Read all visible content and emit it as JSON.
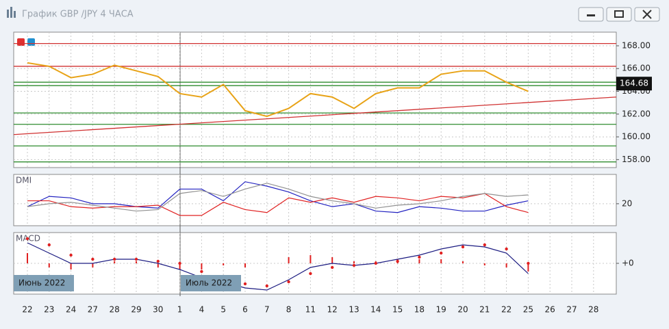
{
  "window": {
    "title": "График GBP /JPY  4 ЧАСА"
  },
  "chart_data": [
    {
      "type": "line",
      "style": "line",
      "categories": [
        "22",
        "23",
        "24",
        "27",
        "28",
        "29",
        "30",
        "1",
        "4",
        "5",
        "6",
        "7",
        "8",
        "11",
        "12",
        "13",
        "14",
        "15",
        "18",
        "19",
        "20",
        "21",
        "22",
        "25",
        "26",
        "27",
        "28"
      ],
      "color": "#e8a317",
      "values": [
        166.5,
        166.2,
        165.2,
        165.5,
        166.3,
        165.8,
        165.3,
        163.8,
        163.5,
        164.6,
        162.3,
        161.8,
        162.5,
        163.8,
        163.5,
        162.5,
        163.8,
        164.3,
        164.3,
        165.5,
        165.8,
        165.8,
        164.8,
        164.0,
        null,
        null,
        null
      ],
      "ylim": [
        157.3,
        169.2
      ],
      "yticks": [
        {
          "value": 158,
          "label": "158.00"
        },
        {
          "value": 160,
          "label": "160.00"
        },
        {
          "value": 162,
          "label": "162.00"
        },
        {
          "value": 164,
          "label": "164.00"
        },
        {
          "value": 166,
          "label": "166.00"
        },
        {
          "value": 168,
          "label": "168.00"
        }
      ],
      "levels": [
        {
          "value": 168.2,
          "color": "#d03030"
        },
        {
          "value": 166.2,
          "color": "#d03030"
        },
        {
          "value": 164.8,
          "color": "#2e8b2e"
        },
        {
          "value": 164.5,
          "color": "#2e8b2e"
        },
        {
          "value": 162.1,
          "color": "#2e8b2e"
        },
        {
          "value": 161.1,
          "color": "#2e8b2e"
        },
        {
          "value": 159.2,
          "color": "#2e8b2e"
        },
        {
          "value": 157.8,
          "color": "#2e8b2e"
        }
      ],
      "trendline": {
        "values": [
          160.2,
          163.5
        ],
        "color": "#d03030"
      },
      "last": 164.68,
      "grid": true
    },
    {
      "type": "line",
      "title": "DMI",
      "series": [
        {
          "color": "#2020c0",
          "style": "line",
          "values": [
            18,
            25,
            24,
            20,
            20,
            18,
            17,
            30,
            30,
            22,
            35,
            32,
            28,
            22,
            18,
            20,
            15,
            14,
            18,
            17,
            15,
            15,
            19,
            22,
            null,
            null,
            null
          ]
        },
        {
          "color": "#e02020",
          "style": "line",
          "values": [
            22,
            22,
            18,
            17,
            18,
            18,
            19,
            12,
            12,
            21,
            16,
            14,
            24,
            21,
            24,
            21,
            25,
            24,
            22,
            25,
            24,
            27,
            18,
            14,
            null,
            null,
            null
          ]
        },
        {
          "color": "#909090",
          "style": "line",
          "values": [
            18,
            20,
            21,
            19,
            17,
            15,
            16,
            27,
            29,
            25,
            30,
            34,
            30,
            25,
            22,
            20,
            17,
            19,
            20,
            22,
            25,
            27,
            25,
            26,
            null,
            null,
            null
          ]
        }
      ],
      "ylim": [
        5,
        40
      ],
      "yticks": [
        20
      ],
      "grid": true
    },
    {
      "type": "line",
      "title": "MACD",
      "series": [
        {
          "color": "#e02020",
          "style": "bars",
          "values": [
            0.5,
            -0.2,
            -0.3,
            -0.2,
            0.1,
            0.1,
            -0.2,
            -0.3,
            -0.3,
            -0.1,
            -0.2,
            0,
            0.3,
            0.4,
            0.3,
            0.1,
            0.1,
            0.2,
            0.2,
            0.2,
            0.1,
            -0.1,
            -0.2,
            -0.4,
            null,
            null,
            null
          ]
        },
        {
          "color": "#1a1a80",
          "style": "line",
          "values": [
            1.0,
            0.5,
            0,
            0,
            0.2,
            0.2,
            0,
            -0.3,
            -0.7,
            -0.9,
            -1.2,
            -1.3,
            -0.8,
            -0.2,
            0,
            -0.1,
            0,
            0.2,
            0.4,
            0.7,
            0.9,
            0.8,
            0.5,
            -0.5,
            null,
            null,
            null
          ]
        },
        {
          "color": "#e02020",
          "style": "dots",
          "values": [
            1.2,
            0.9,
            0.4,
            0.2,
            0.2,
            0.2,
            0.1,
            0,
            -0.4,
            -0.8,
            -1.0,
            -1.1,
            -0.9,
            -0.5,
            -0.2,
            -0.1,
            0,
            0.1,
            0.3,
            0.5,
            0.8,
            0.9,
            0.7,
            0,
            null,
            null,
            null
          ]
        }
      ],
      "ylim": [
        -1.5,
        1.5
      ],
      "yticks": [
        {
          "value": 0,
          "label": "+0"
        }
      ],
      "grid": true
    }
  ],
  "markers": [
    "Июнь 2022",
    "Июль 2022"
  ]
}
